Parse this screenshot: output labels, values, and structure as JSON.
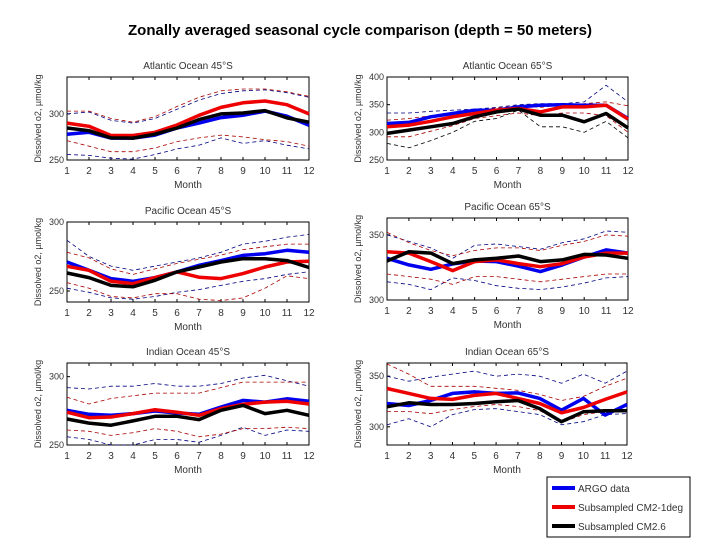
{
  "title": "Zonally averaged seasonal cycle comparison (depth = 50 meters)",
  "colors": {
    "argo": "#0000ee",
    "cm21": "#ee0000",
    "cm26": "#000000"
  },
  "legend": {
    "placement": "bottom-right",
    "entries": [
      {
        "label": "ARGO data",
        "color": "#0000ee"
      },
      {
        "label": "Subsampled CM2-1deg",
        "color": "#ee0000"
      },
      {
        "label": "Subsampled CM2.6",
        "color": "#000000"
      }
    ]
  },
  "chart_data": [
    {
      "type": "line",
      "title": "Atlantic Ocean 45°S",
      "xlabel": "Month",
      "ylabel": "Dissolved o2, µmol/kg",
      "categories": [
        "1",
        "2",
        "3",
        "4",
        "5",
        "6",
        "7",
        "8",
        "9",
        "10",
        "11",
        "12"
      ],
      "ylim": [
        250,
        340
      ],
      "yticks": [
        "250",
        "300"
      ],
      "ytick_values": [
        250,
        300
      ],
      "grid": false,
      "series": [
        {
          "style": "dashed",
          "color": "#000080",
          "values": [
            300,
            302,
            293,
            290,
            295,
            305,
            315,
            322,
            325,
            326,
            323,
            318
          ]
        },
        {
          "style": "dashed",
          "color": "#000080",
          "values": [
            256,
            255,
            252,
            251,
            256,
            262,
            266,
            274,
            268,
            271,
            266,
            262
          ]
        },
        {
          "style": "dashed",
          "color": "#aa0000",
          "values": [
            303,
            303,
            295,
            291,
            297,
            308,
            318,
            325,
            327,
            327,
            324,
            319
          ]
        },
        {
          "style": "dashed",
          "color": "#aa0000",
          "values": [
            271,
            265,
            259,
            259,
            263,
            270,
            274,
            277,
            275,
            272,
            270,
            265
          ]
        },
        {
          "name": "ARGO data",
          "style": "solid",
          "color": "#0000ee",
          "values": [
            278,
            280,
            273.7,
            273.7,
            277,
            284.7,
            290,
            296,
            298.5,
            303,
            297.5,
            287.6
          ]
        },
        {
          "name": "Subsampled CM2-1deg",
          "style": "solid",
          "color": "#ee0000",
          "values": [
            290,
            286.5,
            276.6,
            276.6,
            280,
            288,
            298.5,
            307,
            312,
            314,
            310,
            300
          ]
        },
        {
          "name": "Subsampled CM2.6",
          "style": "solid",
          "color": "#000000",
          "values": [
            284.7,
            281.8,
            274,
            273.7,
            278,
            284.7,
            293.8,
            300,
            301,
            303.6,
            295.6,
            291
          ]
        }
      ]
    },
    {
      "type": "line",
      "title": "Atlantic Ocean 65°S",
      "xlabel": "Month",
      "ylabel": "Dissolved o2, µmol/kg",
      "categories": [
        "1",
        "2",
        "3",
        "4",
        "5",
        "6",
        "7",
        "8",
        "9",
        "10",
        "11",
        "12"
      ],
      "ylim": [
        250,
        400
      ],
      "yticks": [
        "250",
        "300",
        "350",
        "400"
      ],
      "ytick_values": [
        250,
        300,
        350,
        400
      ],
      "grid": false,
      "series": [
        {
          "style": "dashed",
          "color": "#000080",
          "values": [
            335,
            335,
            338,
            340,
            342,
            345,
            350,
            352,
            352,
            355,
            385,
            355
          ]
        },
        {
          "style": "dashed",
          "color": "#000000",
          "values": [
            280,
            272,
            285,
            300,
            320,
            325,
            340,
            310,
            310,
            300,
            320,
            290
          ]
        },
        {
          "style": "dashed",
          "color": "#aa0000",
          "values": [
            322,
            325,
            330,
            336,
            340,
            344,
            348,
            345,
            350,
            352,
            355,
            348
          ]
        },
        {
          "style": "dashed",
          "color": "#aa0000",
          "values": [
            292,
            292,
            302,
            312,
            325,
            330,
            335,
            330,
            335,
            335,
            330,
            300
          ]
        },
        {
          "name": "ARGO data",
          "style": "solid",
          "color": "#0000ee",
          "values": [
            316,
            318,
            328,
            334,
            340,
            340,
            346,
            349,
            350,
            349,
            349,
            325
          ]
        },
        {
          "name": "Subsampled CM2-1deg",
          "style": "solid",
          "color": "#ee0000",
          "values": [
            310,
            313,
            320,
            328,
            334,
            340,
            343,
            337,
            346,
            346,
            349,
            324
          ]
        },
        {
          "name": "Subsampled CM2.6",
          "style": "solid",
          "color": "#000000",
          "values": [
            298,
            304,
            310,
            316,
            328,
            337,
            342,
            331,
            331,
            319,
            334,
            308
          ]
        }
      ]
    },
    {
      "type": "line",
      "title": "Pacific Ocean 45°S",
      "xlabel": "Month",
      "ylabel": "Dissolved o2, µmol/kg",
      "categories": [
        "1",
        "2",
        "3",
        "4",
        "5",
        "6",
        "7",
        "8",
        "9",
        "10",
        "11",
        "12"
      ],
      "ylim": [
        242,
        300
      ],
      "yticks": [
        "250",
        "300"
      ],
      "ytick_values": [
        250,
        300
      ],
      "grid": false,
      "series": [
        {
          "style": "dashed",
          "color": "#000080",
          "values": [
            286.7,
            275,
            268,
            265,
            268,
            271,
            274,
            278,
            284,
            286,
            289,
            291
          ]
        },
        {
          "style": "dashed",
          "color": "#000080",
          "values": [
            252,
            249,
            245,
            244,
            246,
            249,
            251,
            254,
            257,
            259,
            262,
            264
          ]
        },
        {
          "style": "dashed",
          "color": "#aa0000",
          "values": [
            278,
            274,
            266,
            262,
            266,
            270,
            273,
            276,
            280,
            282,
            284,
            284
          ]
        },
        {
          "style": "dashed",
          "color": "#aa0000",
          "values": [
            256,
            252,
            246,
            245,
            248,
            248,
            244,
            243,
            245,
            252,
            261,
            259
          ]
        },
        {
          "name": "ARGO data",
          "style": "solid",
          "color": "#0000ee",
          "values": [
            271,
            265,
            259,
            257,
            259.7,
            263.8,
            268.6,
            272,
            275.8,
            277,
            279.5,
            278
          ]
        },
        {
          "name": "Subsampled CM2-1deg",
          "style": "solid",
          "color": "#ee0000",
          "values": [
            267.9,
            265,
            257,
            255.3,
            259.7,
            263.8,
            260,
            259,
            262.6,
            267.4,
            271,
            271.5
          ]
        },
        {
          "name": "Subsampled CM2.6",
          "style": "solid",
          "color": "#000000",
          "values": [
            263,
            259.7,
            254,
            253,
            257.7,
            263.8,
            267.4,
            271,
            273.4,
            273.4,
            272,
            267
          ]
        }
      ]
    },
    {
      "type": "line",
      "title": "Pacific Ocean 65°S",
      "xlabel": "Month",
      "ylabel": "Dissolved o2, µmol/kg",
      "categories": [
        "1",
        "2",
        "3",
        "4",
        "5",
        "6",
        "7",
        "8",
        "9",
        "10",
        "11",
        "12"
      ],
      "ylim": [
        300,
        363
      ],
      "yticks": [
        "300",
        "350"
      ],
      "ytick_values": [
        300,
        350
      ],
      "grid": false,
      "series": [
        {
          "style": "dashed",
          "color": "#000080",
          "values": [
            350,
            345,
            340,
            332,
            342,
            343,
            341,
            339,
            344,
            347,
            353,
            352
          ]
        },
        {
          "style": "dashed",
          "color": "#000080",
          "values": [
            314,
            312,
            308,
            317,
            315,
            311,
            309,
            308,
            310,
            313,
            317,
            318
          ]
        },
        {
          "style": "dashed",
          "color": "#aa0000",
          "values": [
            352,
            344,
            338,
            334,
            338,
            340,
            340,
            338,
            342,
            345,
            350,
            349
          ]
        },
        {
          "style": "dashed",
          "color": "#aa0000",
          "values": [
            320,
            318,
            316,
            312,
            318,
            318,
            316,
            314,
            316,
            318,
            320,
            320
          ]
        },
        {
          "name": "ARGO data",
          "style": "solid",
          "color": "#0000ee",
          "values": [
            332,
            327,
            323.6,
            327.7,
            330,
            329.5,
            326,
            321.8,
            327,
            333,
            338.5,
            336
          ]
        },
        {
          "name": "Subsampled CM2-1deg",
          "style": "solid",
          "color": "#ee0000",
          "values": [
            337,
            336,
            329.5,
            322.6,
            329.5,
            330.8,
            328,
            325.6,
            328,
            333,
            336,
            336
          ]
        },
        {
          "name": "Subsampled CM2.6",
          "style": "solid",
          "color": "#000000",
          "values": [
            330,
            337,
            336,
            328,
            330.8,
            332,
            333.8,
            329.5,
            330.8,
            335,
            334.6,
            332
          ]
        }
      ]
    },
    {
      "type": "line",
      "title": "Indian Ocean 45°S",
      "xlabel": "Month",
      "ylabel": "Dissolved o2, µmol/kg",
      "categories": [
        "1",
        "2",
        "3",
        "4",
        "5",
        "6",
        "7",
        "8",
        "9",
        "10",
        "11",
        "12"
      ],
      "ylim": [
        250,
        310
      ],
      "yticks": [
        "250",
        "300"
      ],
      "ytick_values": [
        250,
        300
      ],
      "grid": false,
      "series": [
        {
          "style": "dashed",
          "color": "#000080",
          "values": [
            292,
            291,
            293,
            293,
            295,
            293,
            293,
            295,
            299,
            301,
            297,
            293
          ]
        },
        {
          "style": "dashed",
          "color": "#000080",
          "values": [
            256,
            254,
            250,
            250,
            254,
            254,
            252,
            257,
            263,
            257,
            261,
            260
          ]
        },
        {
          "style": "dashed",
          "color": "#aa0000",
          "values": [
            285,
            280,
            284,
            286,
            288,
            288,
            288,
            292,
            296,
            296,
            296,
            296
          ]
        },
        {
          "style": "dashed",
          "color": "#aa0000",
          "values": [
            261,
            260,
            257,
            259,
            262,
            260,
            256,
            258,
            262,
            262,
            263,
            262
          ]
        },
        {
          "name": "ARGO data",
          "style": "solid",
          "color": "#0000ee",
          "values": [
            275.4,
            272.5,
            271.7,
            273,
            274.9,
            273.4,
            272.5,
            277.8,
            282.6,
            281.4,
            283.8,
            282
          ]
        },
        {
          "name": "Subsampled CM2-1deg",
          "style": "solid",
          "color": "#ee0000",
          "values": [
            274,
            270,
            270.5,
            273,
            275.8,
            274,
            271.7,
            276.6,
            279.7,
            281.4,
            282,
            280
          ]
        },
        {
          "name": "Subsampled CM2.6",
          "style": "solid",
          "color": "#000000",
          "values": [
            269,
            266,
            264.5,
            267.6,
            271,
            271,
            268.6,
            275.4,
            279,
            273,
            275.4,
            271.7
          ]
        }
      ]
    },
    {
      "type": "line",
      "title": "Indian Ocean 65°S",
      "xlabel": "Month",
      "ylabel": "Dissolved o2, µmol/kg",
      "categories": [
        "1",
        "2",
        "3",
        "4",
        "5",
        "6",
        "7",
        "8",
        "9",
        "10",
        "11",
        "12"
      ],
      "ylim": [
        282,
        363
      ],
      "yticks": [
        "300",
        "350"
      ],
      "ytick_values": [
        300,
        350
      ],
      "grid": false,
      "series": [
        {
          "style": "dashed",
          "color": "#000080",
          "values": [
            350,
            345,
            349,
            352,
            355,
            350,
            352,
            350,
            343,
            352,
            343,
            355
          ]
        },
        {
          "style": "dashed",
          "color": "#000080",
          "values": [
            302,
            308,
            300,
            312,
            317,
            318,
            315,
            312,
            302,
            305,
            312,
            313
          ]
        },
        {
          "style": "dashed",
          "color": "#aa0000",
          "values": [
            362,
            352,
            340,
            340,
            340,
            338,
            336,
            332,
            326,
            330,
            340,
            348
          ]
        },
        {
          "style": "dashed",
          "color": "#aa0000",
          "values": [
            315,
            315,
            313,
            317,
            320,
            322,
            320,
            316,
            304,
            312,
            315,
            315
          ]
        },
        {
          "name": "ARGO data",
          "style": "solid",
          "color": "#0000ee",
          "values": [
            323,
            321,
            326,
            333,
            334.5,
            333,
            333.5,
            328,
            316.4,
            328,
            311.5,
            322
          ]
        },
        {
          "name": "Subsampled CM2-1deg",
          "style": "solid",
          "color": "#ee0000",
          "values": [
            337.8,
            333,
            328,
            327,
            331,
            333,
            328,
            323,
            313.8,
            319,
            327,
            334.5
          ]
        },
        {
          "name": "Subsampled CM2.6",
          "style": "solid",
          "color": "#000000",
          "values": [
            319.7,
            323.7,
            322,
            322,
            323,
            324.7,
            326,
            318,
            305,
            314.8,
            315.8,
            315.8
          ]
        }
      ]
    }
  ]
}
